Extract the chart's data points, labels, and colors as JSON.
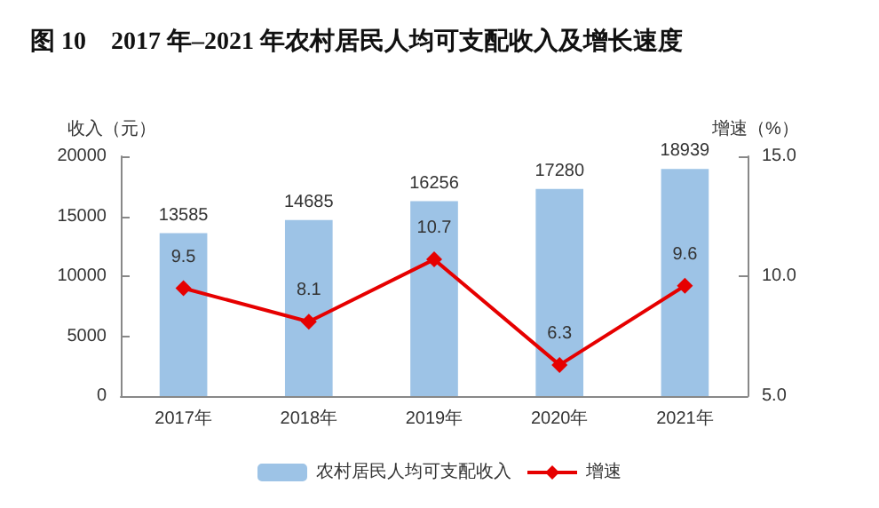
{
  "chart_data": {
    "type": "bar",
    "title": "图 10　2017 年–2021 年农村居民人均可支配收入及增长速度",
    "ylabel": "收入（元）",
    "y2label": "增速（%）",
    "categories": [
      "2017年",
      "2018年",
      "2019年",
      "2020年",
      "2021年"
    ],
    "series": [
      {
        "name": "农村居民人均可支配收入",
        "color": "#9dc3e6",
        "values": [
          13585,
          14685,
          16256,
          17280,
          18939
        ]
      },
      {
        "name": "增速",
        "type": "line",
        "axis": "y2",
        "color": "#e60000",
        "values": [
          9.5,
          8.1,
          10.7,
          6.3,
          9.6
        ]
      }
    ],
    "ylim": [
      0,
      20000
    ],
    "yticks": [
      0,
      5000,
      10000,
      15000,
      20000
    ],
    "y2lim": [
      5,
      15
    ],
    "y2ticks": [
      {
        "value": 5,
        "label": "5.0"
      },
      {
        "value": 10,
        "label": "10.0"
      },
      {
        "value": 15,
        "label": "15.0"
      }
    ],
    "data_labels": true,
    "grid": false,
    "legend": "bottom",
    "marker": "diamond",
    "line_style": "solid"
  }
}
